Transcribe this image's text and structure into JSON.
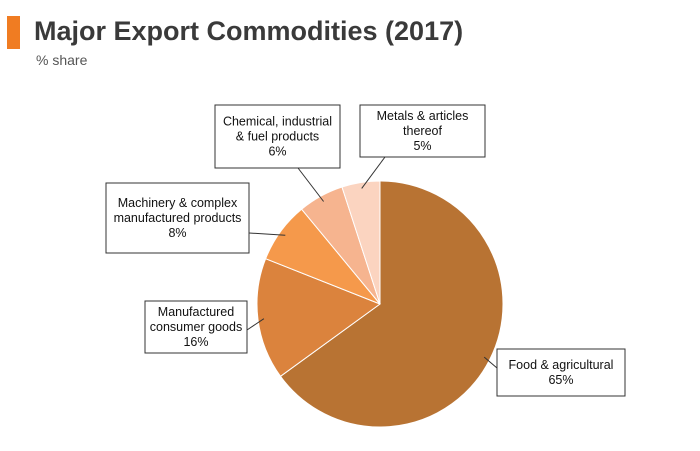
{
  "header": {
    "title": "Major Export Commodities (2017)",
    "subtitle": "% share",
    "accent_color": "#f07c22"
  },
  "chart_data": {
    "type": "pie",
    "title": "Major Export Commodities (2017)",
    "subtitle": "% share",
    "slices": [
      {
        "label": "Food & agricultural",
        "value": 65,
        "value_label": "65%",
        "color": "#b87333"
      },
      {
        "label": "Manufactured consumer goods",
        "value": 16,
        "value_label": "16%",
        "color": "#db833d"
      },
      {
        "label": "Machinery & complex manufactured products",
        "value": 8,
        "value_label": "8%",
        "color": "#f5994b"
      },
      {
        "label": "Chemical, industrial & fuel products",
        "value": 6,
        "value_label": "6%",
        "color": "#f6b48f"
      },
      {
        "label": "Metals & articles thereof",
        "value": 5,
        "value_label": "5%",
        "color": "#fbd4c0"
      }
    ],
    "legend": "none (callout labels)"
  },
  "callouts": [
    {
      "lines": [
        "Food & agricultural",
        "65%"
      ]
    },
    {
      "lines": [
        "Manufactured",
        "consumer goods",
        "16%"
      ]
    },
    {
      "lines": [
        "Machinery & complex",
        "manufactured products",
        "8%"
      ]
    },
    {
      "lines": [
        "Chemical, industrial",
        "& fuel products",
        "6%"
      ]
    },
    {
      "lines": [
        "Metals & articles",
        "thereof",
        "5%"
      ]
    }
  ]
}
